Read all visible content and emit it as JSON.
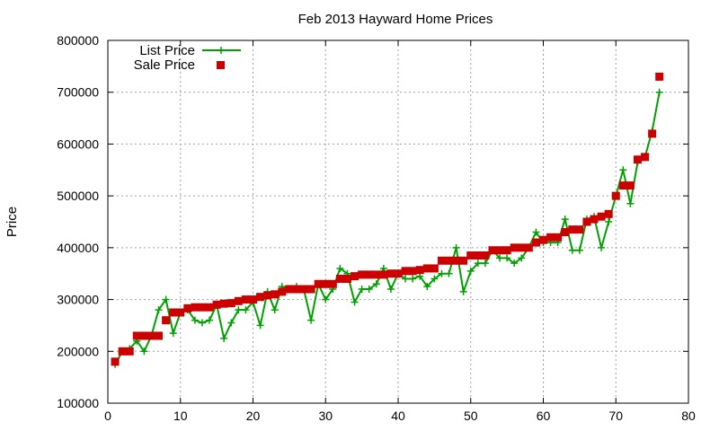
{
  "chart_data": {
    "type": "line",
    "title": "Feb 2013 Hayward Home Prices",
    "xlabel": "",
    "ylabel": "Price",
    "xlim": [
      0,
      80
    ],
    "ylim": [
      100000,
      800000
    ],
    "x_ticks": [
      0,
      10,
      20,
      30,
      40,
      50,
      60,
      70,
      80
    ],
    "y_ticks": [
      100000,
      200000,
      300000,
      400000,
      500000,
      600000,
      700000,
      800000
    ],
    "grid": true,
    "legend_position": "top-left",
    "series": [
      {
        "name": "List Price",
        "color": "#00a000",
        "style": "line-with-plus-markers",
        "x": [
          1,
          2,
          3,
          4,
          5,
          6,
          7,
          8,
          9,
          10,
          11,
          12,
          13,
          14,
          15,
          16,
          17,
          18,
          19,
          20,
          21,
          22,
          23,
          24,
          25,
          26,
          27,
          28,
          29,
          30,
          31,
          32,
          33,
          34,
          35,
          36,
          37,
          38,
          39,
          40,
          41,
          42,
          43,
          44,
          45,
          46,
          47,
          48,
          49,
          50,
          51,
          52,
          53,
          54,
          55,
          56,
          57,
          58,
          59,
          60,
          61,
          62,
          63,
          64,
          65,
          66,
          67,
          68,
          69,
          70,
          71,
          72,
          73,
          74,
          75,
          76
        ],
        "values": [
          175000,
          200000,
          205000,
          220000,
          200000,
          230000,
          280000,
          300000,
          235000,
          275000,
          280000,
          260000,
          255000,
          260000,
          290000,
          225000,
          255000,
          280000,
          280000,
          295000,
          250000,
          315000,
          280000,
          325000,
          320000,
          325000,
          320000,
          260000,
          330000,
          300000,
          320000,
          360000,
          350000,
          295000,
          320000,
          320000,
          330000,
          360000,
          320000,
          350000,
          340000,
          340000,
          345000,
          325000,
          340000,
          350000,
          350000,
          400000,
          315000,
          355000,
          370000,
          370000,
          395000,
          380000,
          380000,
          370000,
          380000,
          400000,
          430000,
          410000,
          410000,
          410000,
          455000,
          395000,
          395000,
          455000,
          460000,
          400000,
          450000,
          500000,
          550000,
          485000,
          565000,
          575000,
          625000,
          700000
        ]
      },
      {
        "name": "Sale Price",
        "color": "#cc0000",
        "style": "square-markers",
        "x": [
          1,
          2,
          3,
          4,
          5,
          6,
          7,
          8,
          9,
          10,
          11,
          12,
          13,
          14,
          15,
          16,
          17,
          18,
          19,
          20,
          21,
          22,
          23,
          24,
          25,
          26,
          27,
          28,
          29,
          30,
          31,
          32,
          33,
          34,
          35,
          36,
          37,
          38,
          39,
          40,
          41,
          42,
          43,
          44,
          45,
          46,
          47,
          48,
          49,
          50,
          51,
          52,
          53,
          54,
          55,
          56,
          57,
          58,
          59,
          60,
          61,
          62,
          63,
          64,
          65,
          66,
          67,
          68,
          69,
          70,
          71,
          72,
          73,
          74,
          75,
          76
        ],
        "values": [
          180000,
          200000,
          200000,
          230000,
          230000,
          230000,
          230000,
          260000,
          275000,
          275000,
          283000,
          285000,
          285000,
          285000,
          290000,
          292000,
          293000,
          297000,
          300000,
          300000,
          305000,
          308000,
          310000,
          315000,
          320000,
          320000,
          320000,
          320000,
          330000,
          330000,
          330000,
          340000,
          340000,
          345000,
          348000,
          348000,
          348000,
          348000,
          350000,
          350000,
          355000,
          355000,
          357000,
          360000,
          360000,
          375000,
          375000,
          375000,
          375000,
          385000,
          385000,
          385000,
          395000,
          395000,
          395000,
          400000,
          400000,
          400000,
          410000,
          415000,
          420000,
          420000,
          430000,
          435000,
          435000,
          450000,
          455000,
          460000,
          465000,
          500000,
          520000,
          520000,
          570000,
          575000,
          620000,
          730000
        ]
      }
    ]
  }
}
